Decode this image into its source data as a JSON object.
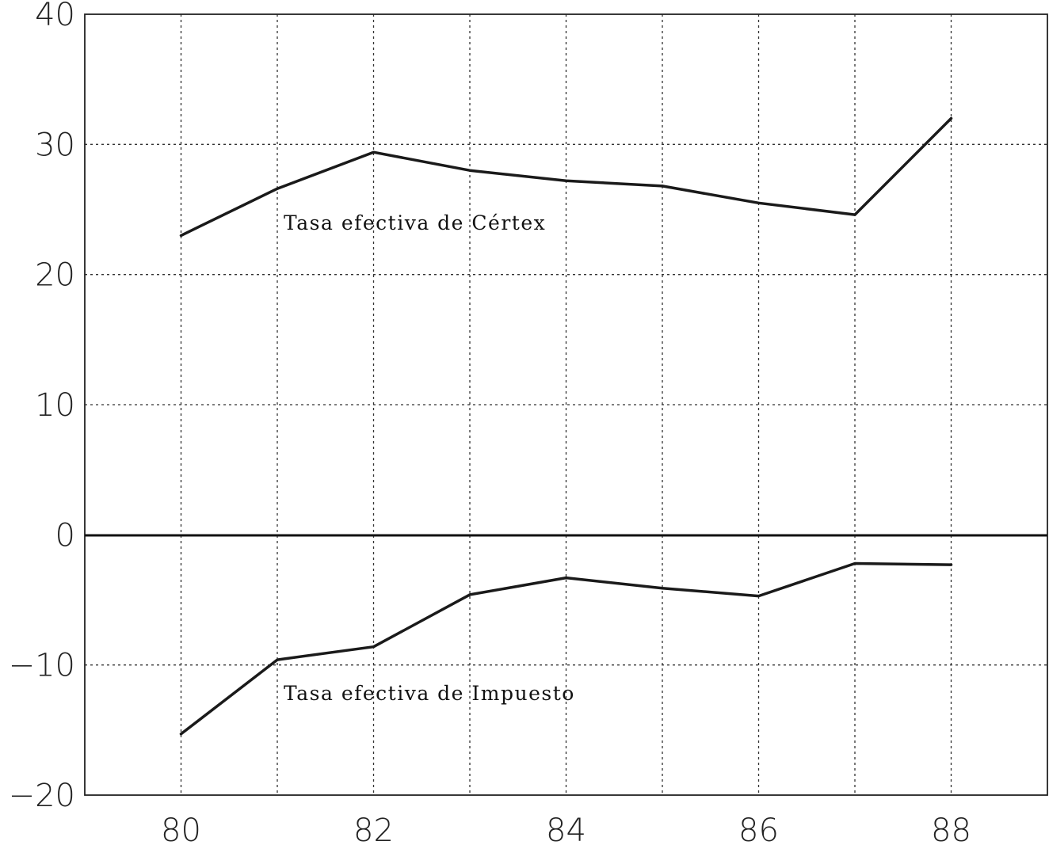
{
  "chart_data": {
    "type": "line",
    "title": "",
    "xlabel": "",
    "ylabel": "",
    "x": [
      80,
      81,
      82,
      83,
      84,
      85,
      86,
      87,
      88
    ],
    "xlim": [
      79,
      89
    ],
    "ylim": [
      -20,
      40
    ],
    "x_ticks": [
      80,
      82,
      84,
      86,
      88
    ],
    "x_tick_labels": [
      "80",
      "82",
      "84",
      "86",
      "88"
    ],
    "y_ticks": [
      40,
      30,
      20,
      10,
      0,
      -10,
      -20
    ],
    "y_tick_labels": [
      "40",
      "30",
      "20",
      "10",
      "0",
      "−10",
      "−20"
    ],
    "grid": true,
    "series": [
      {
        "name": "Tasa efectiva de Cértex",
        "values": [
          23.0,
          26.6,
          29.4,
          28.0,
          27.2,
          26.8,
          25.5,
          24.6,
          32.0
        ]
      },
      {
        "name": "Tasa efectiva de Impuesto",
        "values": [
          -15.3,
          -9.6,
          -8.6,
          -4.6,
          -3.3,
          -4.1,
          -4.7,
          -2.2,
          -2.3
        ]
      }
    ]
  }
}
